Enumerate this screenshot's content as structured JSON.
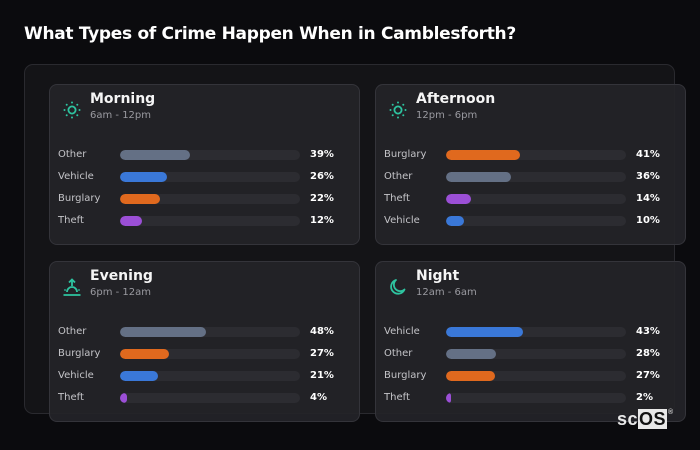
{
  "title": "What Types of Crime Happen When in Camblesforth?",
  "logo": {
    "prefix": "sc",
    "highlight": "OS",
    "mark": "®"
  },
  "colors": {
    "Other": "#647085",
    "Vehicle": "#3a78d8",
    "Burglary": "#e0691e",
    "Theft": "#9b4fd6",
    "icon": "#2ec4a0"
  },
  "cards": [
    {
      "name": "Morning",
      "range": "6am - 12pm",
      "icon": "sun-icon",
      "rows": [
        {
          "label": "Other",
          "pct": "39%",
          "value": 39
        },
        {
          "label": "Vehicle",
          "pct": "26%",
          "value": 26
        },
        {
          "label": "Burglary",
          "pct": "22%",
          "value": 22
        },
        {
          "label": "Theft",
          "pct": "12%",
          "value": 12
        }
      ]
    },
    {
      "name": "Afternoon",
      "range": "12pm - 6pm",
      "icon": "sun-icon",
      "rows": [
        {
          "label": "Burglary",
          "pct": "41%",
          "value": 41
        },
        {
          "label": "Other",
          "pct": "36%",
          "value": 36
        },
        {
          "label": "Theft",
          "pct": "14%",
          "value": 14
        },
        {
          "label": "Vehicle",
          "pct": "10%",
          "value": 10
        }
      ]
    },
    {
      "name": "Evening",
      "range": "6pm - 12am",
      "icon": "sunset-icon",
      "rows": [
        {
          "label": "Other",
          "pct": "48%",
          "value": 48
        },
        {
          "label": "Burglary",
          "pct": "27%",
          "value": 27
        },
        {
          "label": "Vehicle",
          "pct": "21%",
          "value": 21
        },
        {
          "label": "Theft",
          "pct": "4%",
          "value": 4
        }
      ]
    },
    {
      "name": "Night",
      "range": "12am - 6am",
      "icon": "moon-icon",
      "rows": [
        {
          "label": "Vehicle",
          "pct": "43%",
          "value": 43
        },
        {
          "label": "Other",
          "pct": "28%",
          "value": 28
        },
        {
          "label": "Burglary",
          "pct": "27%",
          "value": 27
        },
        {
          "label": "Theft",
          "pct": "2%",
          "value": 2
        }
      ]
    }
  ],
  "chart_data": [
    {
      "type": "bar",
      "orientation": "horizontal",
      "title": "Morning",
      "subtitle": "6am - 12pm",
      "categories": [
        "Other",
        "Vehicle",
        "Burglary",
        "Theft"
      ],
      "values": [
        39,
        26,
        22,
        12
      ],
      "xlim": [
        0,
        100
      ],
      "unit": "%"
    },
    {
      "type": "bar",
      "orientation": "horizontal",
      "title": "Afternoon",
      "subtitle": "12pm - 6pm",
      "categories": [
        "Burglary",
        "Other",
        "Theft",
        "Vehicle"
      ],
      "values": [
        41,
        36,
        14,
        10
      ],
      "xlim": [
        0,
        100
      ],
      "unit": "%"
    },
    {
      "type": "bar",
      "orientation": "horizontal",
      "title": "Evening",
      "subtitle": "6pm - 12am",
      "categories": [
        "Other",
        "Burglary",
        "Vehicle",
        "Theft"
      ],
      "values": [
        48,
        27,
        21,
        4
      ],
      "xlim": [
        0,
        100
      ],
      "unit": "%"
    },
    {
      "type": "bar",
      "orientation": "horizontal",
      "title": "Night",
      "subtitle": "12am - 6am",
      "categories": [
        "Vehicle",
        "Other",
        "Burglary",
        "Theft"
      ],
      "values": [
        43,
        28,
        27,
        2
      ],
      "xlim": [
        0,
        100
      ],
      "unit": "%"
    }
  ]
}
